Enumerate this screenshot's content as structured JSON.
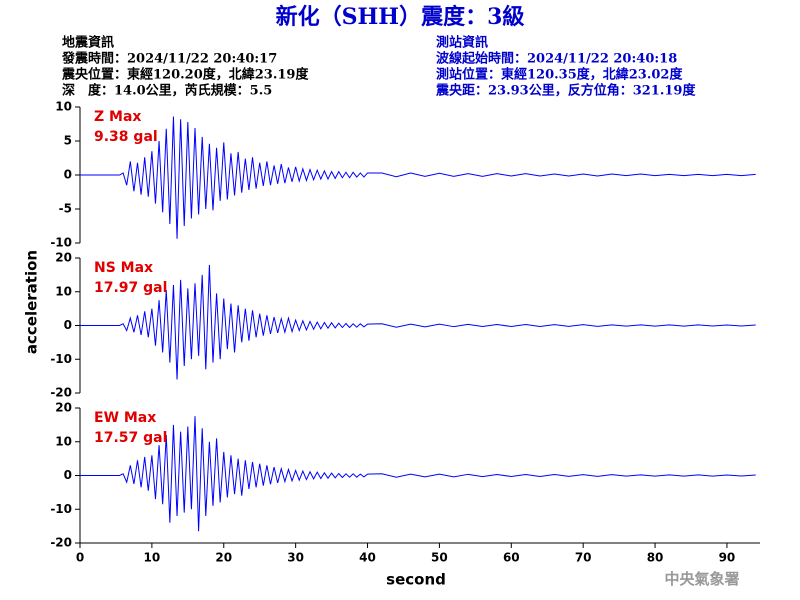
{
  "chart_data": {
    "type": "line",
    "title": "新化（SHH）震度：3級",
    "info_left": [
      "地震資訊",
      "發震時間：2024/11/22 20:40:17",
      "震央位置：東經120.20度，北緯23.19度",
      "深　度：14.0公里，芮氏規模：5.5"
    ],
    "info_right": [
      "測站資訊",
      "波線起始時間：2024/11/22 20:40:18",
      "測站位置：東經120.35度，北緯23.02度",
      "震央距：23.93公里，反方位角：321.19度"
    ],
    "xlabel": "second",
    "ylabel": "acceleration",
    "credit": "中央氣象署",
    "xlim": [
      0,
      94.6
    ],
    "xticks": [
      0,
      10,
      20,
      30,
      40,
      50,
      60,
      70,
      80,
      90
    ],
    "x": [
      0,
      5.5,
      6,
      6.5,
      7,
      7.5,
      8,
      8.5,
      9,
      9.5,
      10,
      10.5,
      11,
      11.5,
      12,
      12.5,
      13,
      13.5,
      14,
      14.5,
      15,
      15.5,
      16,
      16.5,
      17,
      17.5,
      18,
      18.5,
      19,
      19.5,
      20,
      20.5,
      21,
      21.5,
      22,
      22.5,
      23,
      23.5,
      24,
      24.5,
      25,
      25.5,
      26,
      26.5,
      27,
      27.5,
      28,
      28.5,
      29,
      29.5,
      30,
      30.5,
      31,
      31.5,
      32,
      32.5,
      33,
      33.5,
      34,
      34.5,
      35,
      35.5,
      36,
      36.5,
      37,
      37.5,
      38,
      38.5,
      39,
      39.5,
      40,
      42,
      44,
      46,
      48,
      50,
      52,
      54,
      56,
      58,
      60,
      62,
      64,
      66,
      68,
      70,
      72,
      74,
      76,
      78,
      80,
      82,
      84,
      86,
      88,
      90,
      92,
      94
    ],
    "series": [
      {
        "name": "Z Max",
        "annotation": "9.38 gal",
        "color": "#0000ff",
        "ylim": [
          -10,
          10
        ],
        "yticks": [
          -10,
          -5,
          0,
          5,
          10
        ],
        "values": [
          0,
          0,
          0.3,
          -1.5,
          2.0,
          -2.4,
          1.8,
          -2.9,
          2.6,
          -3.2,
          3.5,
          -4.2,
          5.0,
          -5.5,
          6.8,
          -7.2,
          8.6,
          -9.38,
          8.2,
          -7.5,
          7.8,
          -6.4,
          6.9,
          -5.8,
          5.6,
          -5.0,
          4.6,
          -5.2,
          4.0,
          -3.8,
          4.8,
          -3.6,
          3.2,
          -3.0,
          3.4,
          -2.6,
          2.4,
          -2.2,
          2.6,
          -2.0,
          1.8,
          -1.6,
          2.0,
          -1.5,
          1.4,
          -1.3,
          1.6,
          -1.2,
          1.1,
          -1.0,
          1.2,
          -0.9,
          0.9,
          -0.8,
          0.8,
          -0.7,
          0.7,
          -0.6,
          0.6,
          -0.6,
          0.5,
          -0.5,
          0.5,
          -0.4,
          0.4,
          -0.4,
          0.4,
          -0.3,
          0.3,
          -0.3,
          0.3,
          0.3,
          -0.25,
          0.3,
          -0.2,
          0.25,
          -0.2,
          0.2,
          -0.2,
          0.2,
          -0.15,
          0.2,
          -0.15,
          0.15,
          -0.15,
          0.15,
          -0.15,
          0.15,
          -0.1,
          0.15,
          -0.1,
          0.1,
          -0.1,
          0.1,
          -0.1,
          0.1,
          -0.1,
          0.1
        ]
      },
      {
        "name": "NS Max",
        "annotation": "17.97 gal",
        "color": "#0000ff",
        "ylim": [
          -20,
          20
        ],
        "yticks": [
          -20,
          -10,
          0,
          10,
          20
        ],
        "values": [
          0,
          0,
          0.5,
          -1.5,
          2.2,
          -2.0,
          3.0,
          -2.8,
          4.2,
          -3.5,
          5.0,
          -6.0,
          7.5,
          -8.0,
          10.5,
          -11.0,
          12.0,
          -16.0,
          13.5,
          -12.0,
          11.0,
          -10.0,
          12.5,
          -9.0,
          15.0,
          -13.0,
          17.97,
          -11.0,
          9.5,
          -10.0,
          8.0,
          -7.0,
          6.5,
          -8.0,
          6.0,
          -5.0,
          5.0,
          -4.5,
          4.5,
          -3.5,
          3.5,
          -3.0,
          3.0,
          -2.5,
          2.5,
          -2.2,
          2.0,
          -2.0,
          2.2,
          -1.8,
          1.6,
          -1.5,
          1.4,
          -1.3,
          1.2,
          -1.1,
          1.0,
          -1.0,
          0.9,
          -0.8,
          0.8,
          -0.7,
          0.7,
          -0.6,
          0.6,
          -0.6,
          0.5,
          -0.5,
          0.5,
          -0.4,
          0.4,
          0.5,
          -0.5,
          0.4,
          -0.4,
          0.4,
          -0.35,
          0.35,
          -0.3,
          0.3,
          -0.3,
          0.3,
          -0.3,
          0.25,
          -0.25,
          0.25,
          -0.25,
          0.2,
          -0.2,
          0.2,
          -0.2,
          0.2,
          -0.2,
          0.2,
          -0.15,
          0.15,
          -0.15,
          0.15
        ]
      },
      {
        "name": "EW Max",
        "annotation": "17.57 gal",
        "color": "#0000ff",
        "ylim": [
          -20,
          20
        ],
        "yticks": [
          -20,
          -10,
          0,
          10,
          20
        ],
        "values": [
          0,
          0,
          0.5,
          -2.0,
          3.0,
          -2.5,
          4.5,
          -3.5,
          5.5,
          -4.5,
          6.0,
          -7.0,
          9.0,
          -8.5,
          12.0,
          -14.0,
          15.0,
          -12.0,
          13.0,
          -11.0,
          14.5,
          -10.0,
          17.57,
          -16.5,
          14.0,
          -12.0,
          10.0,
          -9.0,
          11.0,
          -8.0,
          7.0,
          -6.5,
          6.0,
          -5.5,
          5.0,
          -6.0,
          4.5,
          -4.0,
          4.0,
          -3.5,
          3.5,
          -3.0,
          3.0,
          -2.6,
          2.5,
          -2.2,
          2.0,
          -1.8,
          1.8,
          -1.6,
          1.5,
          -1.4,
          1.3,
          -1.2,
          1.1,
          -1.0,
          1.0,
          -0.9,
          0.8,
          -0.8,
          0.7,
          -0.7,
          0.6,
          -0.6,
          0.5,
          -0.5,
          0.5,
          -0.5,
          0.4,
          -0.4,
          0.4,
          0.5,
          -0.5,
          0.4,
          -0.4,
          0.4,
          -0.4,
          0.35,
          -0.35,
          0.3,
          -0.3,
          0.3,
          -0.3,
          0.3,
          -0.25,
          0.25,
          -0.25,
          0.25,
          -0.2,
          0.2,
          -0.2,
          0.2,
          -0.2,
          0.2,
          -0.2,
          0.15,
          -0.15,
          0.15
        ]
      }
    ]
  }
}
